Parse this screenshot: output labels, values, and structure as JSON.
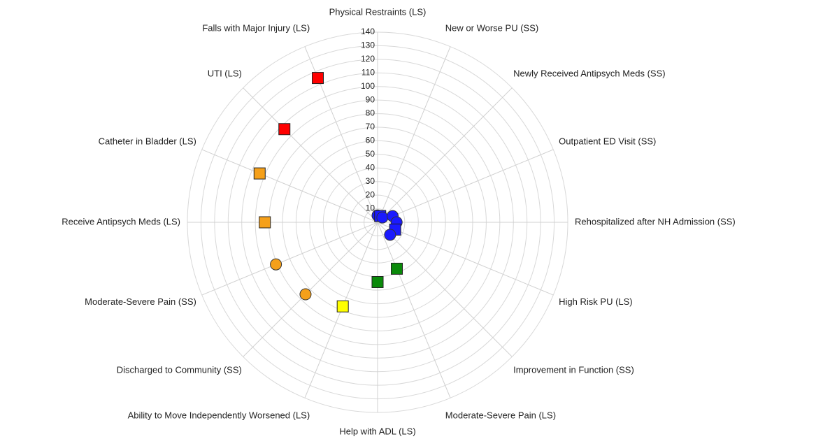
{
  "chart_data": {
    "type": "radar",
    "categories": [
      "Physical Restraints (LS)",
      "New or Worse PU (SS)",
      "Newly Received Antipsych Meds (SS)",
      "Outpatient ED Visit (SS)",
      "Rehospitalized after NH Admission (SS)",
      "High Risk PU (LS)",
      "Improvement in Function (SS)",
      "Moderate-Severe Pain (LS)",
      "Help with ADL (LS)",
      "Ability to Move Independently Worsened (LS)",
      "Discharged to Community (SS)",
      "Moderate-Severe Pain (SS)",
      "Receive Antipsych Meds (LS)",
      "Catheter in Bladder (LS)",
      "UTI (LS)",
      "Falls with Major Injury (LS)"
    ],
    "values": [
      5,
      5,
      5,
      12,
      14,
      14,
      13,
      37,
      44,
      67,
      75,
      81,
      83,
      94,
      97,
      115
    ],
    "colors": [
      "#1a1aff",
      "#1a1aff",
      "#1a1aff",
      "#1a1aff",
      "#1a1aff",
      "#1a1aff",
      "#1a1aff",
      "#0a8a0a",
      "#0a8a0a",
      "#ffff00",
      "#f5a01a",
      "#f5a01a",
      "#f5a01a",
      "#f5a01a",
      "#ff0000",
      "#ff0000"
    ],
    "markers": [
      "circle",
      "square",
      "circle",
      "circle",
      "circle",
      "square",
      "circle",
      "square",
      "square",
      "square",
      "circle",
      "circle",
      "square",
      "square",
      "square",
      "square"
    ],
    "rlim": [
      0,
      140
    ],
    "rticks": [
      10,
      20,
      30,
      40,
      50,
      60,
      70,
      80,
      90,
      100,
      110,
      120,
      130,
      140
    ],
    "grid": true
  }
}
